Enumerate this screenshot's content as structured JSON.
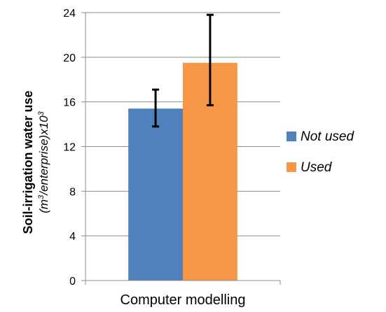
{
  "chart_data": {
    "type": "bar",
    "categories": [
      "Computer modelling"
    ],
    "series": [
      {
        "name": "Not used",
        "values": [
          15.4
        ],
        "error_low": [
          13.8
        ],
        "error_high": [
          17.1
        ],
        "color": "#4f81bd"
      },
      {
        "name": "Used",
        "values": [
          19.5
        ],
        "error_low": [
          15.7
        ],
        "error_high": [
          23.8
        ],
        "color": "#f79646"
      }
    ],
    "ylabel_line1": "Soil-irrigation water use",
    "ylabel_line2_pre": "(m",
    "ylabel_line2_sup1": "3",
    "ylabel_line2_mid": "/enterprise)x10",
    "ylabel_line2_sup2": "3",
    "xlabel": "",
    "ylim": [
      0,
      24
    ],
    "yticks": [
      0,
      4,
      8,
      12,
      16,
      20,
      24
    ],
    "grid": true,
    "legend_position": "right"
  }
}
